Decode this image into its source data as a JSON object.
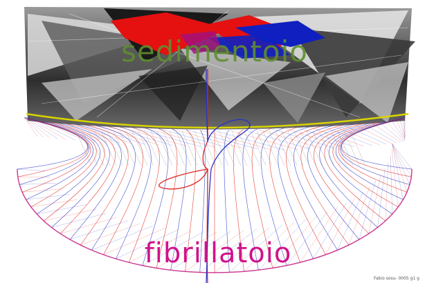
{
  "top_title": "sedimentoio",
  "bottom_title": "fibrillatoio",
  "credit": "Fabio sosu- 0005 g1 g",
  "colors": {
    "top_title": "#5f8f2f",
    "bottom_title": "#d0128a",
    "red_lines": "#e0241b",
    "blue_lines": "#2331c8",
    "polygon_red": "#e51010",
    "polygon_blue": "#1020c0",
    "rim_yellow": "#d9d400"
  }
}
